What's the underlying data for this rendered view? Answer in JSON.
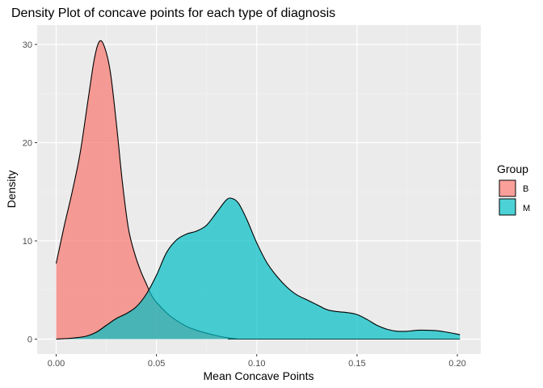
{
  "chart_data": {
    "type": "area",
    "title": "Density Plot of concave points for each type of diagnosis",
    "xlabel": "Mean Concave Points",
    "ylabel": "Density",
    "xlim": [
      0,
      0.2013
    ],
    "ylim": [
      0,
      30.4
    ],
    "x_ticks": [
      0,
      0.05,
      0.1,
      0.15,
      0.2
    ],
    "x_tick_labels": [
      "0.00",
      "0.05",
      "0.10",
      "0.15",
      "0.20"
    ],
    "y_ticks": [
      0,
      10,
      20,
      30
    ],
    "y_tick_labels": [
      "0",
      "10",
      "20",
      "30"
    ],
    "grid": true,
    "legend": {
      "title": "Group",
      "position": "right"
    },
    "series": [
      {
        "name": "B",
        "color": "#F8766D",
        "points": [
          [
            0.0,
            7.7
          ],
          [
            0.004,
            11.5
          ],
          [
            0.008,
            15.0
          ],
          [
            0.012,
            19.0
          ],
          [
            0.016,
            24.5
          ],
          [
            0.019,
            28.5
          ],
          [
            0.0215,
            30.3
          ],
          [
            0.024,
            29.8
          ],
          [
            0.027,
            27.2
          ],
          [
            0.03,
            22.0
          ],
          [
            0.033,
            16.0
          ],
          [
            0.036,
            11.3
          ],
          [
            0.039,
            8.8
          ],
          [
            0.042,
            7.0
          ],
          [
            0.045,
            5.6
          ],
          [
            0.048,
            4.3
          ],
          [
            0.052,
            3.3
          ],
          [
            0.056,
            2.5
          ],
          [
            0.06,
            1.9
          ],
          [
            0.065,
            1.3
          ],
          [
            0.07,
            0.9
          ],
          [
            0.075,
            0.6
          ],
          [
            0.08,
            0.35
          ],
          [
            0.085,
            0.15
          ],
          [
            0.09,
            0.03
          ],
          [
            0.095,
            0.0
          ],
          [
            0.2013,
            0.0
          ]
        ]
      },
      {
        "name": "M",
        "color": "#00BFC4",
        "points": [
          [
            0.0,
            0.0
          ],
          [
            0.008,
            0.1
          ],
          [
            0.015,
            0.3
          ],
          [
            0.02,
            0.7
          ],
          [
            0.025,
            1.4
          ],
          [
            0.03,
            2.1
          ],
          [
            0.035,
            2.6
          ],
          [
            0.04,
            3.3
          ],
          [
            0.045,
            4.6
          ],
          [
            0.05,
            6.5
          ],
          [
            0.055,
            8.8
          ],
          [
            0.06,
            10.1
          ],
          [
            0.065,
            10.7
          ],
          [
            0.07,
            11.0
          ],
          [
            0.075,
            11.6
          ],
          [
            0.08,
            12.9
          ],
          [
            0.085,
            14.2
          ],
          [
            0.088,
            14.3
          ],
          [
            0.091,
            13.8
          ],
          [
            0.095,
            12.2
          ],
          [
            0.1,
            9.8
          ],
          [
            0.105,
            7.8
          ],
          [
            0.11,
            6.4
          ],
          [
            0.115,
            5.3
          ],
          [
            0.12,
            4.5
          ],
          [
            0.125,
            4.0
          ],
          [
            0.13,
            3.5
          ],
          [
            0.135,
            3.0
          ],
          [
            0.14,
            2.8
          ],
          [
            0.145,
            2.7
          ],
          [
            0.15,
            2.5
          ],
          [
            0.155,
            2.0
          ],
          [
            0.16,
            1.4
          ],
          [
            0.165,
            1.0
          ],
          [
            0.17,
            0.8
          ],
          [
            0.175,
            0.8
          ],
          [
            0.18,
            0.9
          ],
          [
            0.185,
            0.9
          ],
          [
            0.19,
            0.85
          ],
          [
            0.195,
            0.7
          ],
          [
            0.2013,
            0.45
          ]
        ]
      }
    ]
  }
}
